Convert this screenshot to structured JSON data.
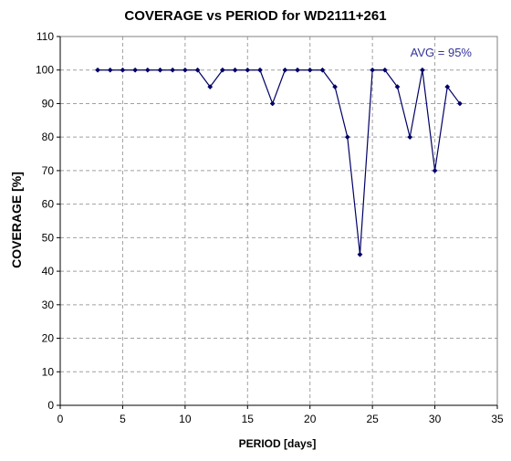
{
  "chart_data": {
    "type": "line",
    "title": "COVERAGE vs PERIOD for WD2111+261",
    "xlabel": "PERIOD [days]",
    "ylabel": "COVERAGE [%]",
    "xlim": [
      0,
      35
    ],
    "ylim": [
      0,
      110
    ],
    "x_ticks": [
      0,
      5,
      10,
      15,
      20,
      25,
      30,
      35
    ],
    "y_ticks": [
      0,
      10,
      20,
      30,
      40,
      50,
      60,
      70,
      80,
      90,
      100,
      110
    ],
    "grid": true,
    "legend": "none",
    "annotation": "AVG = 95%",
    "series": [
      {
        "x": [
          3,
          4,
          5,
          6,
          7,
          8,
          9,
          10,
          11,
          12,
          13,
          14,
          15,
          16,
          17,
          18,
          19,
          20,
          21,
          22,
          23,
          24,
          25,
          26,
          27,
          28,
          29,
          30,
          31,
          32
        ],
        "values": [
          100,
          100,
          100,
          100,
          100,
          100,
          100,
          100,
          100,
          95,
          100,
          100,
          100,
          100,
          90,
          100,
          100,
          100,
          100,
          95,
          80,
          45,
          100,
          100,
          95,
          80,
          100,
          70,
          95,
          90
        ]
      }
    ],
    "colors": {
      "line": "#000066",
      "marker": "#000066",
      "annotation": "#333399",
      "grid": "#a0a0a0",
      "axis": "#000000"
    }
  }
}
